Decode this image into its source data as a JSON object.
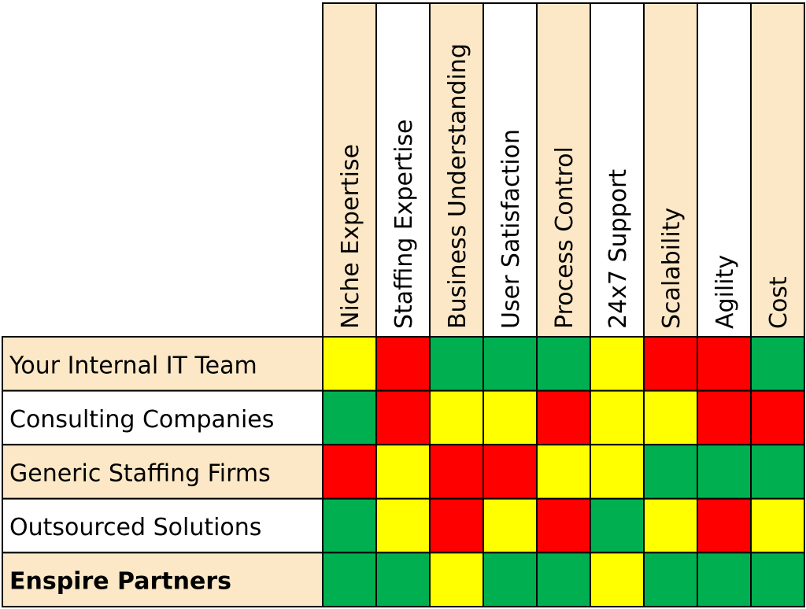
{
  "colors": {
    "green": "#00b050",
    "yellow": "#ffff00",
    "red": "#ff0000",
    "tan": "#fce8c6",
    "white": "#ffffff",
    "border": "#000000"
  },
  "chart_data": {
    "type": "heatmap",
    "title": "",
    "columns": [
      "Niche Expertise",
      "Staffing Expertise",
      "Business Understanding",
      "User Satisfaction",
      "Process Control",
      "24x7 Support",
      "Scalability",
      "Agility",
      "Cost"
    ],
    "rows": [
      "Your Internal IT Team",
      "Consulting Companies",
      "Generic Staffing Firms",
      "Outsourced Solutions",
      "Enspire Partners"
    ],
    "highlighted_row": "Enspire Partners",
    "header_shading": "alternating tan / white",
    "cells": [
      [
        "yellow",
        "red",
        "green",
        "green",
        "green",
        "yellow",
        "red",
        "red",
        "green"
      ],
      [
        "green",
        "red",
        "yellow",
        "yellow",
        "red",
        "yellow",
        "yellow",
        "red",
        "red"
      ],
      [
        "red",
        "yellow",
        "red",
        "red",
        "yellow",
        "yellow",
        "green",
        "green",
        "green"
      ],
      [
        "green",
        "yellow",
        "red",
        "yellow",
        "red",
        "green",
        "yellow",
        "red",
        "yellow"
      ],
      [
        "green",
        "green",
        "yellow",
        "green",
        "green",
        "yellow",
        "green",
        "green",
        "green"
      ]
    ]
  }
}
